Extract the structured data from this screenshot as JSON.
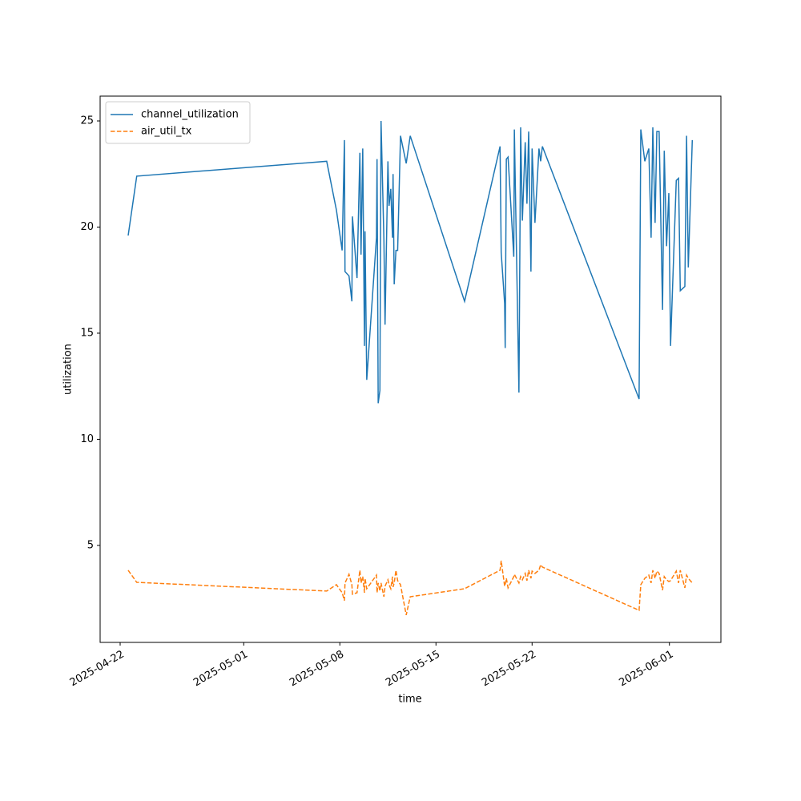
{
  "chart_data": {
    "type": "line",
    "x_label": "time",
    "y_label": "utilization",
    "x": [
      "2025-04-22 14:00",
      "2025-04-23 05:00",
      "2025-05-07 01:00",
      "2025-05-07 18:00",
      "2025-05-08 04:00",
      "2025-05-08 08:00",
      "2025-05-08 09:00",
      "2025-05-08 16:00",
      "2025-05-08 21:00",
      "2025-05-08 22:00",
      "2025-05-09 06:00",
      "2025-05-09 11:00",
      "2025-05-09 13:00",
      "2025-05-09 16:00",
      "2025-05-09 19:00",
      "2025-05-09 20:00",
      "2025-05-09 23:00",
      "2025-05-10 16:00",
      "2025-05-10 17:00",
      "2025-05-10 19:00",
      "2025-05-10 22:00",
      "2025-05-11 00:00",
      "2025-05-11 05:00",
      "2025-05-11 07:00",
      "2025-05-11 12:00",
      "2025-05-11 14:00",
      "2025-05-11 17:00",
      "2025-05-11 20:00",
      "2025-05-11 21:00",
      "2025-05-11 23:00",
      "2025-05-12 02:00",
      "2025-05-12 05:00",
      "2025-05-12 10:00",
      "2025-05-12 20:00",
      "2025-05-13 03:00",
      "2025-05-17 02:00",
      "2025-05-19 16:00",
      "2025-05-19 18:00",
      "2025-05-20 00:00",
      "2025-05-20 01:00",
      "2025-05-20 03:00",
      "2025-05-20 06:00",
      "2025-05-20 16:00",
      "2025-05-20 17:00",
      "2025-05-21 01:00",
      "2025-05-21 04:00",
      "2025-05-21 07:00",
      "2025-05-21 12:00",
      "2025-05-21 15:00",
      "2025-05-21 18:00",
      "2025-05-21 22:00",
      "2025-05-22 00:00",
      "2025-05-22 05:00",
      "2025-05-22 12:00",
      "2025-05-22 15:00",
      "2025-05-22 18:00",
      "2025-05-29 19:00",
      "2025-05-29 22:00",
      "2025-05-30 05:00",
      "2025-05-30 12:00",
      "2025-05-30 16:00",
      "2025-05-30 19:00",
      "2025-05-30 23:00",
      "2025-05-31 02:00",
      "2025-05-31 06:00",
      "2025-05-31 12:00",
      "2025-05-31 15:00",
      "2025-05-31 19:00",
      "2025-05-31 23:00",
      "2025-06-01 02:00",
      "2025-06-01 12:00",
      "2025-06-01 16:00",
      "2025-06-01 19:00",
      "2025-06-02 03:00",
      "2025-06-02 06:00",
      "2025-06-02 09:00",
      "2025-06-02 16:00"
    ],
    "series": [
      {
        "name": "channel_utilization",
        "color": "#1f77b4",
        "linestyle": "solid",
        "values": [
          19.6,
          22.4,
          23.1,
          20.8,
          18.9,
          24.1,
          17.9,
          17.7,
          16.5,
          20.5,
          17.6,
          23.5,
          18.7,
          23.7,
          14.4,
          19.8,
          12.8,
          19.5,
          23.2,
          11.7,
          12.3,
          25.0,
          19.4,
          15.4,
          23.1,
          21.0,
          21.8,
          19.5,
          22.5,
          17.3,
          18.9,
          18.9,
          24.3,
          23.0,
          24.3,
          16.5,
          23.8,
          18.8,
          16.4,
          14.3,
          23.2,
          23.3,
          18.6,
          24.6,
          12.2,
          24.7,
          20.3,
          24.0,
          21.1,
          24.5,
          17.9,
          23.7,
          20.2,
          23.7,
          23.1,
          23.8,
          11.9,
          24.6,
          23.1,
          23.7,
          19.5,
          24.7,
          20.2,
          24.5,
          24.5,
          16.1,
          23.6,
          19.1,
          21.6,
          14.4,
          22.2,
          22.3,
          17.0,
          17.2,
          24.3,
          18.1,
          24.1
        ]
      },
      {
        "name": "air_util_tx",
        "color": "#ff7f0e",
        "linestyle": "dashed",
        "values": [
          3.83,
          3.26,
          2.85,
          3.15,
          2.77,
          2.4,
          3.23,
          3.64,
          3.15,
          2.7,
          2.77,
          3.83,
          3.23,
          3.53,
          2.77,
          3.45,
          2.96,
          3.6,
          2.77,
          3.23,
          2.85,
          3.23,
          2.58,
          3.08,
          3.38,
          3.15,
          2.96,
          3.53,
          3.04,
          3.23,
          3.83,
          3.34,
          3.15,
          1.72,
          2.58,
          2.96,
          3.83,
          4.28,
          3.08,
          3.15,
          3.45,
          3.0,
          3.53,
          3.64,
          3.23,
          3.53,
          3.38,
          3.68,
          3.34,
          3.83,
          3.45,
          3.79,
          3.68,
          3.83,
          4.09,
          3.98,
          1.94,
          3.15,
          3.45,
          3.6,
          3.23,
          3.83,
          3.45,
          3.79,
          3.68,
          2.89,
          3.53,
          3.38,
          3.3,
          3.34,
          3.79,
          3.23,
          3.83,
          3.0,
          3.6,
          3.45,
          3.23
        ]
      }
    ],
    "xlim": [
      "2025-04-20 13:00",
      "2025-06-04 18:00"
    ],
    "xticks": [
      "2025-04-22",
      "2025-05-01",
      "2025-05-08",
      "2025-05-15",
      "2025-05-22",
      "2025-06-01"
    ],
    "ylim": [
      0.43,
      26.17
    ],
    "yticks": [
      5,
      10,
      15,
      20,
      25
    ],
    "grid": false,
    "legend": "upper-left"
  }
}
